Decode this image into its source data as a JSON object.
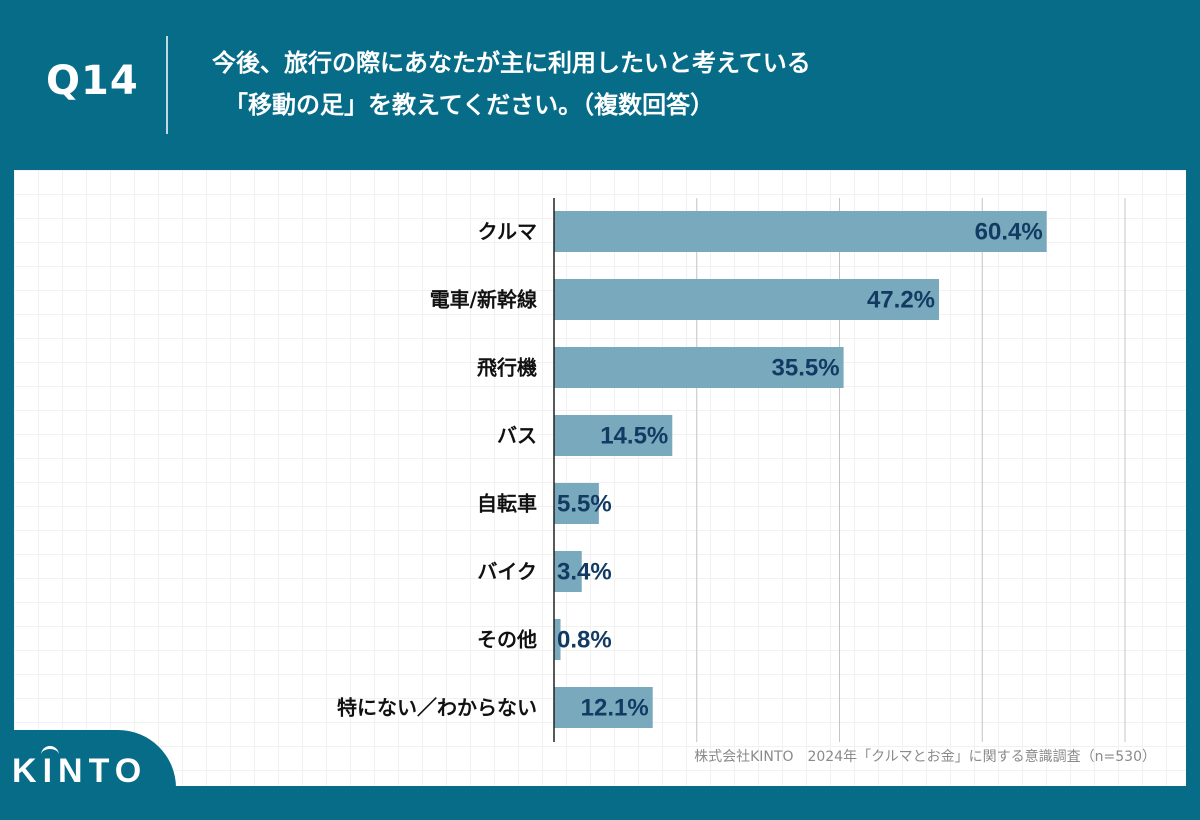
{
  "header": {
    "question_number": "Q14",
    "question_line1": "今後、旅行の際にあなたが主に利用したいと考えている",
    "question_line2": "「移動の足」を教えてください。（複数回答）"
  },
  "chart_data": {
    "type": "bar",
    "orientation": "horizontal",
    "title": "今後、旅行の際にあなたが主に利用したいと考えている「移動の足」を教えてください。（複数回答）",
    "categories": [
      "クルマ",
      "電車/新幹線",
      "飛行機",
      "バス",
      "自転車",
      "バイク",
      "その他",
      "特にない／わからない"
    ],
    "values": [
      60.4,
      47.2,
      35.5,
      14.5,
      5.5,
      3.4,
      0.8,
      12.1
    ],
    "value_labels": [
      "60.4%",
      "47.2%",
      "35.5%",
      "14.5%",
      "5.5%",
      "3.4%",
      "0.8%",
      "12.1%"
    ],
    "unit": "%",
    "xlim": [
      0,
      70
    ],
    "grid_interval": 17.5,
    "xlabel": "",
    "ylabel": "",
    "bar_color": "#78a9bc",
    "label_color": "#123a62"
  },
  "footer": {
    "source": "株式会社KINTO　2024年「クルマとお金」に関する意識調査（n=530）",
    "logo_text": "KINTO"
  },
  "colors": {
    "background": "#066c88",
    "panel": "#ffffff"
  }
}
